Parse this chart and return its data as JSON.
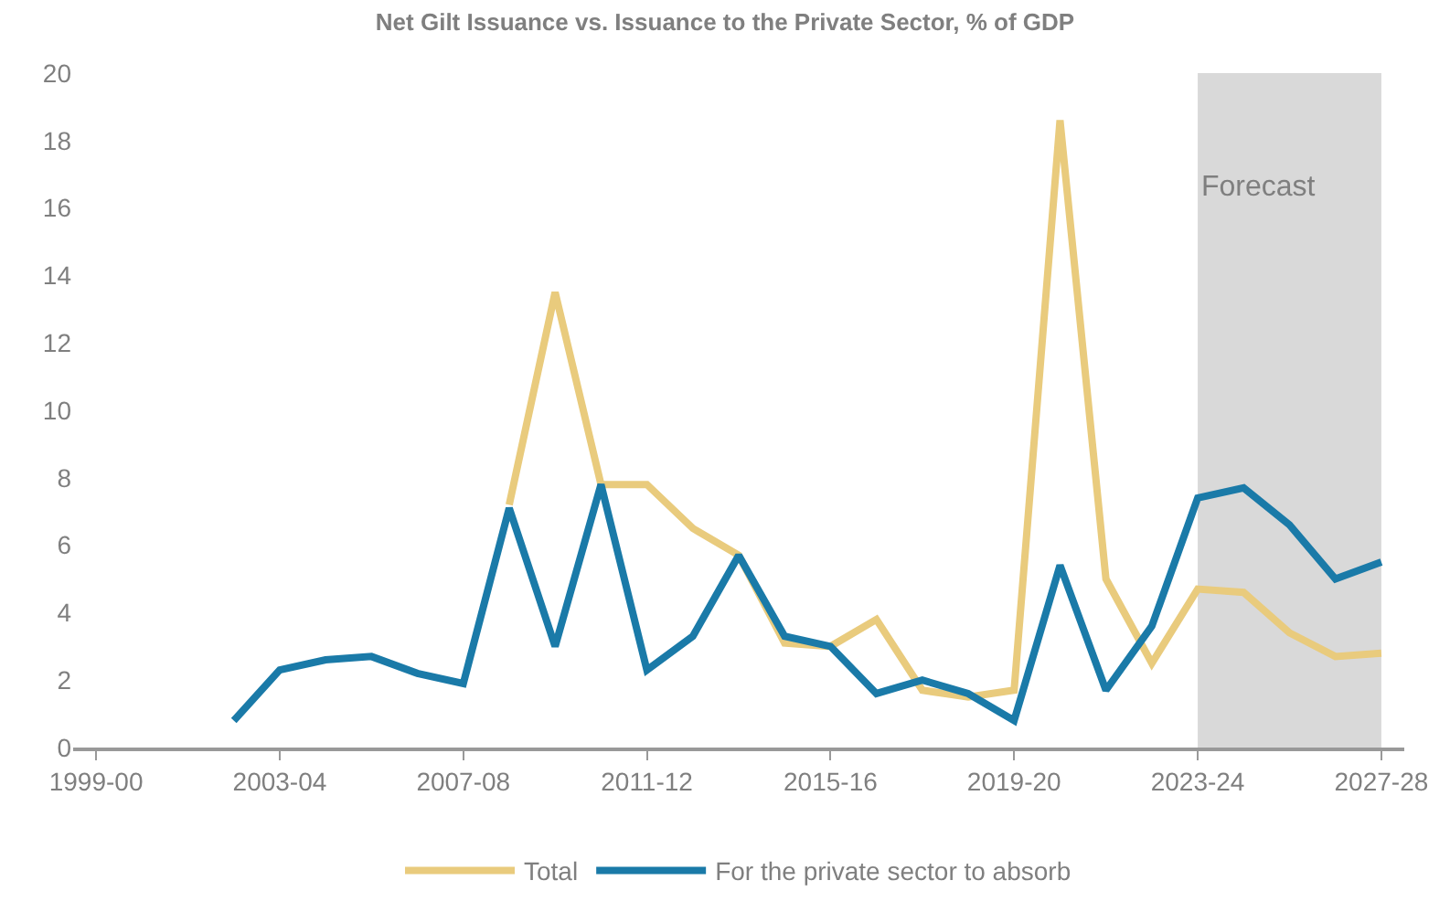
{
  "chart_data": {
    "type": "line",
    "title": "Net Gilt Issuance vs. Issuance to the Private Sector, % of GDP",
    "categories": [
      "1999-00",
      null,
      null,
      null,
      "2003-04",
      null,
      null,
      null,
      "2007-08",
      null,
      null,
      null,
      "2011-12",
      null,
      null,
      null,
      "2015-16",
      null,
      null,
      null,
      "2019-20",
      null,
      null,
      null,
      "2023-24",
      null,
      null,
      null,
      "2027-28"
    ],
    "series": [
      {
        "name": "Total",
        "color": "#e9cb7d",
        "values": [
          null,
          null,
          null,
          null,
          null,
          null,
          null,
          null,
          null,
          7.2,
          13.5,
          7.8,
          7.8,
          6.5,
          5.7,
          3.1,
          3.0,
          3.8,
          1.7,
          1.5,
          1.7,
          18.6,
          5.0,
          2.5,
          4.7,
          4.6,
          3.4,
          2.7,
          2.8
        ]
      },
      {
        "name": "For the private sector to absorb",
        "color": "#1a7aa8",
        "values": [
          null,
          null,
          null,
          0.8,
          2.3,
          2.6,
          2.7,
          2.2,
          1.9,
          7.1,
          3.0,
          7.8,
          2.3,
          3.3,
          5.7,
          3.3,
          3.0,
          1.6,
          2.0,
          1.6,
          0.8,
          5.4,
          1.7,
          3.6,
          7.4,
          7.7,
          6.6,
          5.0,
          5.5
        ]
      }
    ],
    "ylim": [
      0,
      20
    ],
    "yticks": [
      0,
      2,
      4,
      6,
      8,
      10,
      12,
      14,
      16,
      18,
      20
    ],
    "bands": [
      {
        "axis": "x",
        "from": "2023-24",
        "to": "2027-28",
        "label": "Forecast",
        "color": "#d9d9d9"
      }
    ],
    "grid": false,
    "legend": "bottom",
    "marker": "none",
    "line_style": "solid"
  }
}
